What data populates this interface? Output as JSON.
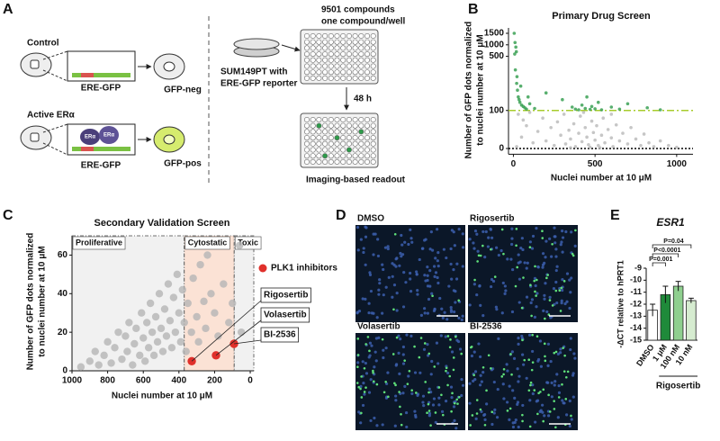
{
  "panel_labels": [
    "A",
    "B",
    "C",
    "D",
    "E"
  ],
  "diagram": {
    "control": "Control",
    "active": "Active ERα",
    "reporter": [
      "ERE-GFP",
      "ERE-GFP"
    ],
    "receptor": [
      "ERα",
      "ERα"
    ],
    "neg": "GFP-neg",
    "pos": "GFP-pos",
    "cell_line": [
      "SUM149PT with",
      "ERE-GFP reporter"
    ],
    "library": [
      "9501 compounds",
      "one compound/well"
    ],
    "time": "48 h",
    "readout": "Imaging-based readout"
  },
  "images": {
    "labels": [
      "DMSO",
      "Rigosertib",
      "Volasertib",
      "BI-2536"
    ]
  },
  "chart_data": [
    {
      "type": "scatter",
      "title": "Primary Drug Screen",
      "x_label": "Nuclei number at 10 μM",
      "y_label": [
        "Number of GFP dots normalized",
        "to nuclei number at 10 μM"
      ],
      "xlim": [
        -30,
        1100
      ],
      "xticks": [
        0,
        500,
        1000
      ],
      "ylim": [
        -15,
        1500
      ],
      "yticks": [
        0,
        100,
        500,
        1000,
        1500
      ],
      "yscale": "broken",
      "hlines": [
        {
          "value": 100,
          "color": "#a8cc2c",
          "style": "dash-dot"
        },
        {
          "value": 0,
          "color": "#000000",
          "style": "dotted"
        }
      ],
      "series": [
        {
          "color": "#b8b8b8",
          "x": [
            20,
            50,
            80,
            120,
            150,
            180,
            200,
            230,
            250,
            270,
            290,
            310,
            320,
            340,
            350,
            370,
            380,
            400,
            410,
            420,
            440,
            450,
            460,
            480,
            490,
            500,
            510,
            520,
            540,
            550,
            560,
            580,
            600,
            610,
            630,
            650,
            670,
            700,
            720,
            750,
            780,
            800,
            830,
            860,
            900,
            950,
            1000,
            30,
            60,
            100,
            430,
            470,
            530,
            600,
            350
          ],
          "values": [
            5,
            30,
            60,
            15,
            45,
            80,
            20,
            55,
            8,
            70,
            35,
            90,
            12,
            48,
            25,
            65,
            5,
            40,
            85,
            18,
            55,
            30,
            10,
            72,
            42,
            22,
            60,
            8,
            35,
            80,
            15,
            50,
            28,
            5,
            62,
            20,
            40,
            12,
            55,
            25,
            8,
            38,
            15,
            5,
            20,
            8,
            3,
            90,
            75,
            95,
            95,
            3,
            2,
            90,
            2
          ]
        },
        {
          "color": "#2e9b4a",
          "x": [
            5,
            10,
            15,
            8,
            12,
            20,
            25,
            30,
            35,
            40,
            50,
            60,
            70,
            80,
            45,
            90,
            100,
            130,
            200,
            300,
            360,
            380,
            400,
            420,
            440,
            450,
            470,
            480,
            500,
            520,
            540,
            600,
            650,
            700,
            820,
            900,
            18,
            22
          ],
          "values": [
            1500,
            1100,
            900,
            600,
            400,
            300,
            250,
            200,
            180,
            160,
            140,
            130,
            120,
            110,
            280,
            200,
            150,
            115,
            230,
            180,
            125,
            110,
            105,
            140,
            115,
            200,
            108,
            130,
            112,
            160,
            105,
            125,
            110,
            150,
            120,
            105,
            700,
            350
          ]
        }
      ]
    },
    {
      "type": "scatter",
      "title": "Secondary Validation Screen",
      "x_label": "Nuclei number at 10 μM",
      "y_label": [
        "Number of GFP dots normalized",
        "to nuclei number at 10 μM"
      ],
      "xlim": [
        1000,
        -20
      ],
      "xticks": [
        1000,
        800,
        600,
        400,
        200,
        0
      ],
      "ylim": [
        0,
        70
      ],
      "yticks": [
        0,
        20,
        40,
        60
      ],
      "regions": [
        {
          "label": "Proliferative",
          "from": 1000,
          "to": 370,
          "color": "#f1f1f1"
        },
        {
          "label": "Cytostatic",
          "from": 370,
          "to": 90,
          "color": "#fbe2d5"
        },
        {
          "label": "Toxic",
          "from": 90,
          "to": -20,
          "color": "#f1f1f1"
        }
      ],
      "legend": "right",
      "series": [
        {
          "color": "#b5b5b5",
          "x": [
            950,
            900,
            870,
            850,
            820,
            800,
            780,
            760,
            740,
            720,
            700,
            690,
            680,
            660,
            650,
            640,
            620,
            610,
            600,
            590,
            580,
            570,
            560,
            550,
            540,
            530,
            520,
            510,
            500,
            490,
            480,
            470,
            460,
            450,
            440,
            430,
            420,
            410,
            400,
            390,
            380,
            370,
            360,
            350,
            330,
            320,
            300,
            290,
            280,
            260,
            250,
            240,
            220,
            200,
            180,
            150,
            120,
            100,
            60,
            50
          ],
          "values": [
            2,
            5,
            10,
            3,
            8,
            15,
            4,
            12,
            20,
            6,
            18,
            10,
            25,
            3,
            14,
            22,
            8,
            30,
            17,
            5,
            25,
            12,
            35,
            20,
            8,
            28,
            15,
            40,
            22,
            10,
            32,
            18,
            45,
            26,
            12,
            38,
            20,
            50,
            30,
            15,
            42,
            25,
            10,
            35,
            20,
            48,
            28,
            15,
            55,
            36,
            22,
            60,
            40,
            30,
            18,
            45,
            25,
            35,
            65,
            20
          ]
        },
        {
          "name": "PLK1 inhibitors",
          "color": "#e0302b",
          "x": [
            328,
            192,
            91
          ],
          "values": [
            5,
            8,
            14
          ],
          "point_labels": [
            "Rigosertib",
            "Volasertib",
            "BI-2536"
          ]
        }
      ]
    },
    {
      "type": "bar",
      "title": "ESR1",
      "y_label": "-ΔCT relative to hPRT1",
      "categories": [
        "DMSO",
        "1 μM",
        "100 nM",
        "10 nM"
      ],
      "values": [
        -12.5,
        -11.2,
        -10.5,
        -11.7
      ],
      "errors": [
        0.5,
        0.7,
        0.4,
        0.2
      ],
      "colors": [
        "#ffffff",
        "#1f8a3a",
        "#8fcf8f",
        "#d6ecd0"
      ],
      "ylim": [
        -15,
        -9
      ],
      "yticks": [
        -15,
        -14,
        -13,
        -12,
        -11,
        -10,
        -9
      ],
      "significance": [
        "P=0.001",
        "P<0.0001",
        "P=0.04"
      ],
      "group_label": "Rigosertib"
    }
  ]
}
